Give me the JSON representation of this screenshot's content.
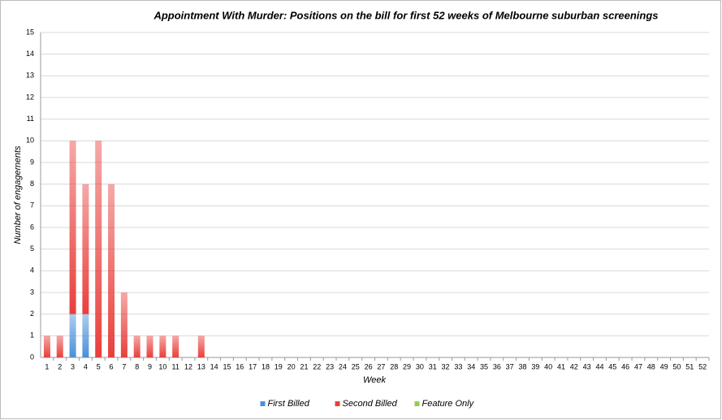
{
  "chart_data": {
    "type": "bar",
    "stacked": true,
    "title": "Appointment With Murder: Positions on the bill for first 52 weeks of Melbourne suburban screenings",
    "x_label": "Week",
    "y_label": "Number of engagements",
    "categories": [
      "1",
      "2",
      "3",
      "4",
      "5",
      "6",
      "7",
      "8",
      "9",
      "10",
      "11",
      "12",
      "13",
      "14",
      "15",
      "16",
      "17",
      "18",
      "19",
      "20",
      "21",
      "22",
      "23",
      "24",
      "25",
      "26",
      "27",
      "28",
      "29",
      "30",
      "31",
      "32",
      "33",
      "34",
      "35",
      "36",
      "37",
      "38",
      "39",
      "40",
      "41",
      "42",
      "43",
      "44",
      "45",
      "46",
      "47",
      "48",
      "49",
      "50",
      "51",
      "52"
    ],
    "series": [
      {
        "name": "First Billed",
        "color": "#4a90d9",
        "values": [
          0,
          0,
          2,
          2,
          0,
          0,
          0,
          0,
          0,
          0,
          0,
          0,
          0,
          0,
          0,
          0,
          0,
          0,
          0,
          0,
          0,
          0,
          0,
          0,
          0,
          0,
          0,
          0,
          0,
          0,
          0,
          0,
          0,
          0,
          0,
          0,
          0,
          0,
          0,
          0,
          0,
          0,
          0,
          0,
          0,
          0,
          0,
          0,
          0,
          0,
          0,
          0
        ]
      },
      {
        "name": "Second Billed",
        "color": "#e8403c",
        "values": [
          1,
          1,
          8,
          6,
          10,
          8,
          3,
          1,
          1,
          1,
          1,
          0,
          1,
          0,
          0,
          0,
          0,
          0,
          0,
          0,
          0,
          0,
          0,
          0,
          0,
          0,
          0,
          0,
          0,
          0,
          0,
          0,
          0,
          0,
          0,
          0,
          0,
          0,
          0,
          0,
          0,
          0,
          0,
          0,
          0,
          0,
          0,
          0,
          0,
          0,
          0,
          0
        ]
      },
      {
        "name": "Feature Only",
        "color": "#8fd14f",
        "values": [
          0,
          0,
          0,
          0,
          0,
          0,
          0,
          0,
          0,
          0,
          0,
          0,
          0,
          0,
          0,
          0,
          0,
          0,
          0,
          0,
          0,
          0,
          0,
          0,
          0,
          0,
          0,
          0,
          0,
          0,
          0,
          0,
          0,
          0,
          0,
          0,
          0,
          0,
          0,
          0,
          0,
          0,
          0,
          0,
          0,
          0,
          0,
          0,
          0,
          0,
          0,
          0
        ]
      }
    ],
    "ylim": [
      0,
      15
    ],
    "yticks": [
      0,
      1,
      2,
      3,
      4,
      5,
      6,
      7,
      8,
      9,
      10,
      11,
      12,
      13,
      14,
      15
    ],
    "grid": true,
    "legend": "bottom"
  }
}
